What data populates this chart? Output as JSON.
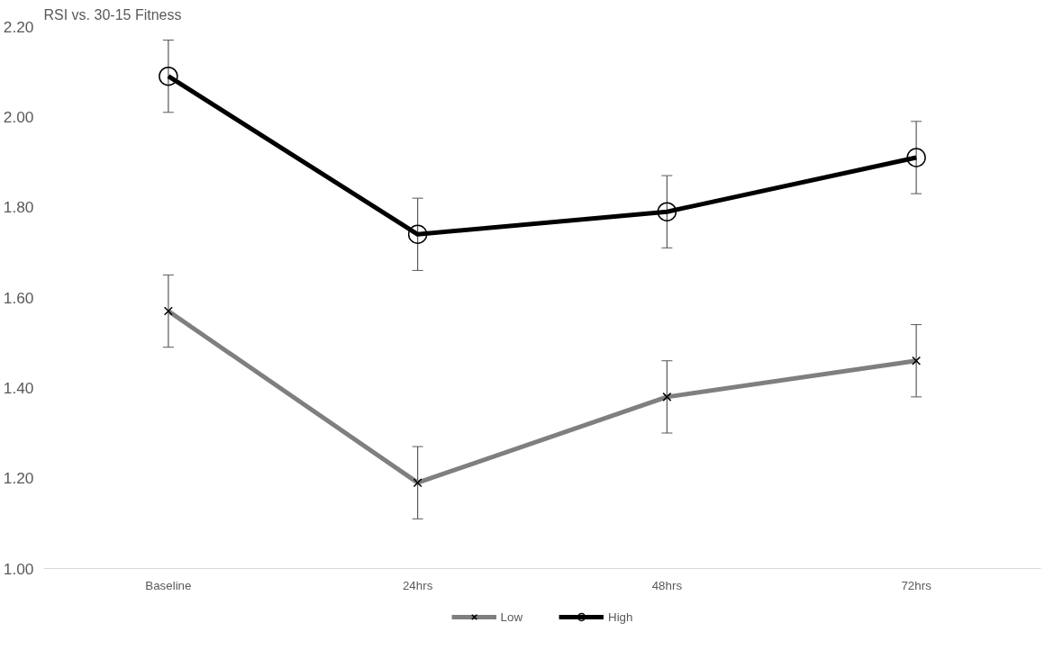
{
  "chart_data": {
    "type": "line",
    "title": "RSI vs. 30-15 Fitness",
    "categories": [
      "Baseline",
      "24hrs",
      "48hrs",
      "72hrs"
    ],
    "series": [
      {
        "name": "Low",
        "color": "#7f7f7f",
        "marker": "cross",
        "values": [
          1.57,
          1.19,
          1.38,
          1.46
        ],
        "errors": [
          0.08,
          0.08,
          0.08,
          0.08
        ]
      },
      {
        "name": "High",
        "color": "#000000",
        "marker": "circle",
        "values": [
          2.09,
          1.74,
          1.79,
          1.91
        ],
        "errors": [
          0.08,
          0.08,
          0.08,
          0.08
        ]
      }
    ],
    "ylim": [
      1.0,
      2.2
    ],
    "yticks": [
      {
        "value": 1.0,
        "label": "1.00"
      },
      {
        "value": 1.2,
        "label": "1.20"
      },
      {
        "value": 1.4,
        "label": "1.40"
      },
      {
        "value": 1.6,
        "label": "1.60"
      },
      {
        "value": 1.8,
        "label": "1.80"
      },
      {
        "value": 2.0,
        "label": "2.00"
      },
      {
        "value": 2.2,
        "label": "2.20"
      }
    ],
    "grid": false,
    "legend": "bottom",
    "line_style": "solid"
  }
}
